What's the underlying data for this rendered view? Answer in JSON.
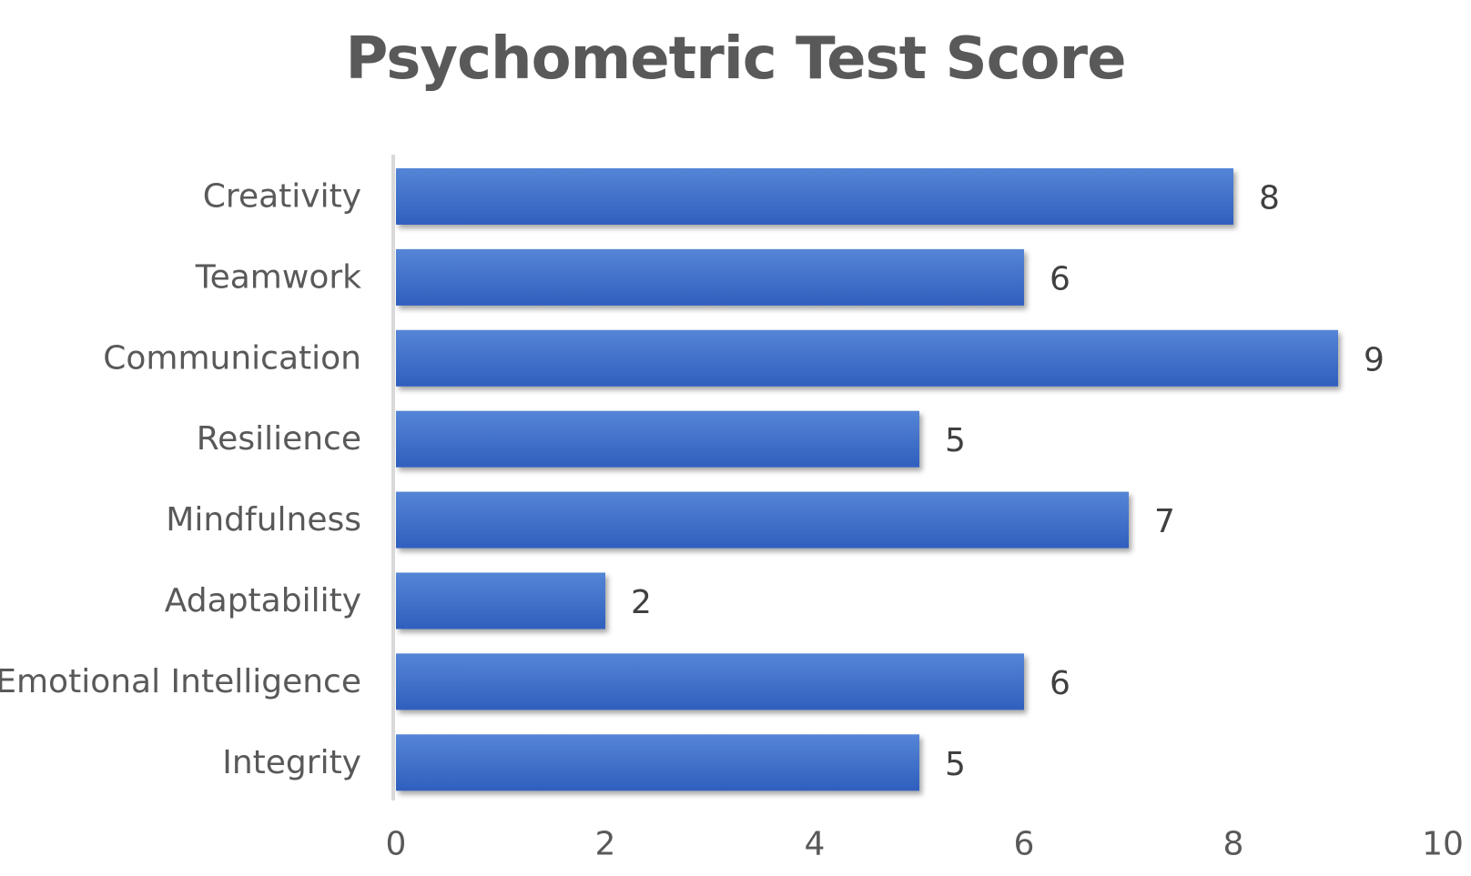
{
  "chart_data": {
    "type": "bar",
    "orientation": "horizontal",
    "title": "Psychometric Test Score",
    "xlabel": "",
    "ylabel": "",
    "categories": [
      "Creativity",
      "Teamwork",
      "Communication",
      "Resilience",
      "Mindfulness",
      "Adaptability",
      "Emotional Intelligence",
      "Integrity"
    ],
    "series": [
      {
        "values": [
          8,
          6,
          9,
          5,
          7,
          2,
          6,
          5
        ],
        "color": "#4472C4"
      }
    ],
    "xlim": [
      0,
      10
    ],
    "xticks": [
      "0",
      "2",
      "4",
      "6",
      "8",
      "10"
    ],
    "grid": false,
    "legend": "none",
    "data_labels": true
  }
}
